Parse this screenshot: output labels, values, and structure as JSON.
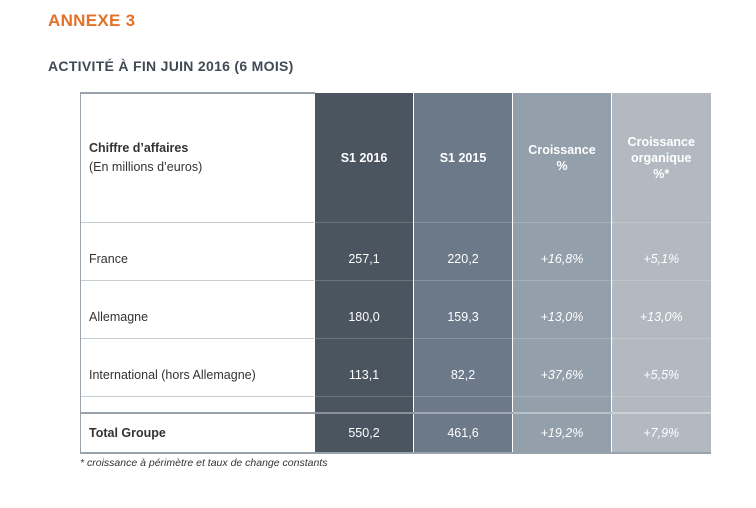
{
  "annex_title": "ANNEXE 3",
  "subtitle": "ACTIVITÉ À FIN JUIN 2016 (6 MOIS)",
  "table": {
    "header": {
      "label_line1": "Chiffre d’affaires",
      "label_line2": "(En millions d’euros)",
      "s1_2016": "S1 2016",
      "s1_2015": "S1 2015",
      "croissance_line1": "Croissance",
      "croissance_line2": "%",
      "organique_line1": "Croissance",
      "organique_line2": "organique",
      "organique_line3": "%*"
    },
    "rows": [
      {
        "label": "France",
        "s1_2016": "257,1",
        "s1_2015": "220,2",
        "croissance": "+16,8%",
        "organique": "+5,1%"
      },
      {
        "label": "Allemagne",
        "s1_2016": "180,0",
        "s1_2015": "159,3",
        "croissance": "+13,0%",
        "organique": "+13,0%"
      },
      {
        "label": "International (hors Allemagne)",
        "s1_2016": "113,1",
        "s1_2015": "82,2",
        "croissance": "+37,6%",
        "organique": "+5,5%"
      }
    ],
    "total": {
      "label": "Total Groupe",
      "s1_2016": "550,2",
      "s1_2015": "461,6",
      "croissance": "+19,2%",
      "organique": "+7,9%"
    }
  },
  "footnote": "* croissance à périmètre et taux de change constants",
  "colors": {
    "accent": "#e2722b",
    "col_s1_2016": "#4a5560",
    "col_s1_2015": "#6b7988",
    "col_croissance": "#939faa",
    "col_organique": "#b2b9c1"
  }
}
